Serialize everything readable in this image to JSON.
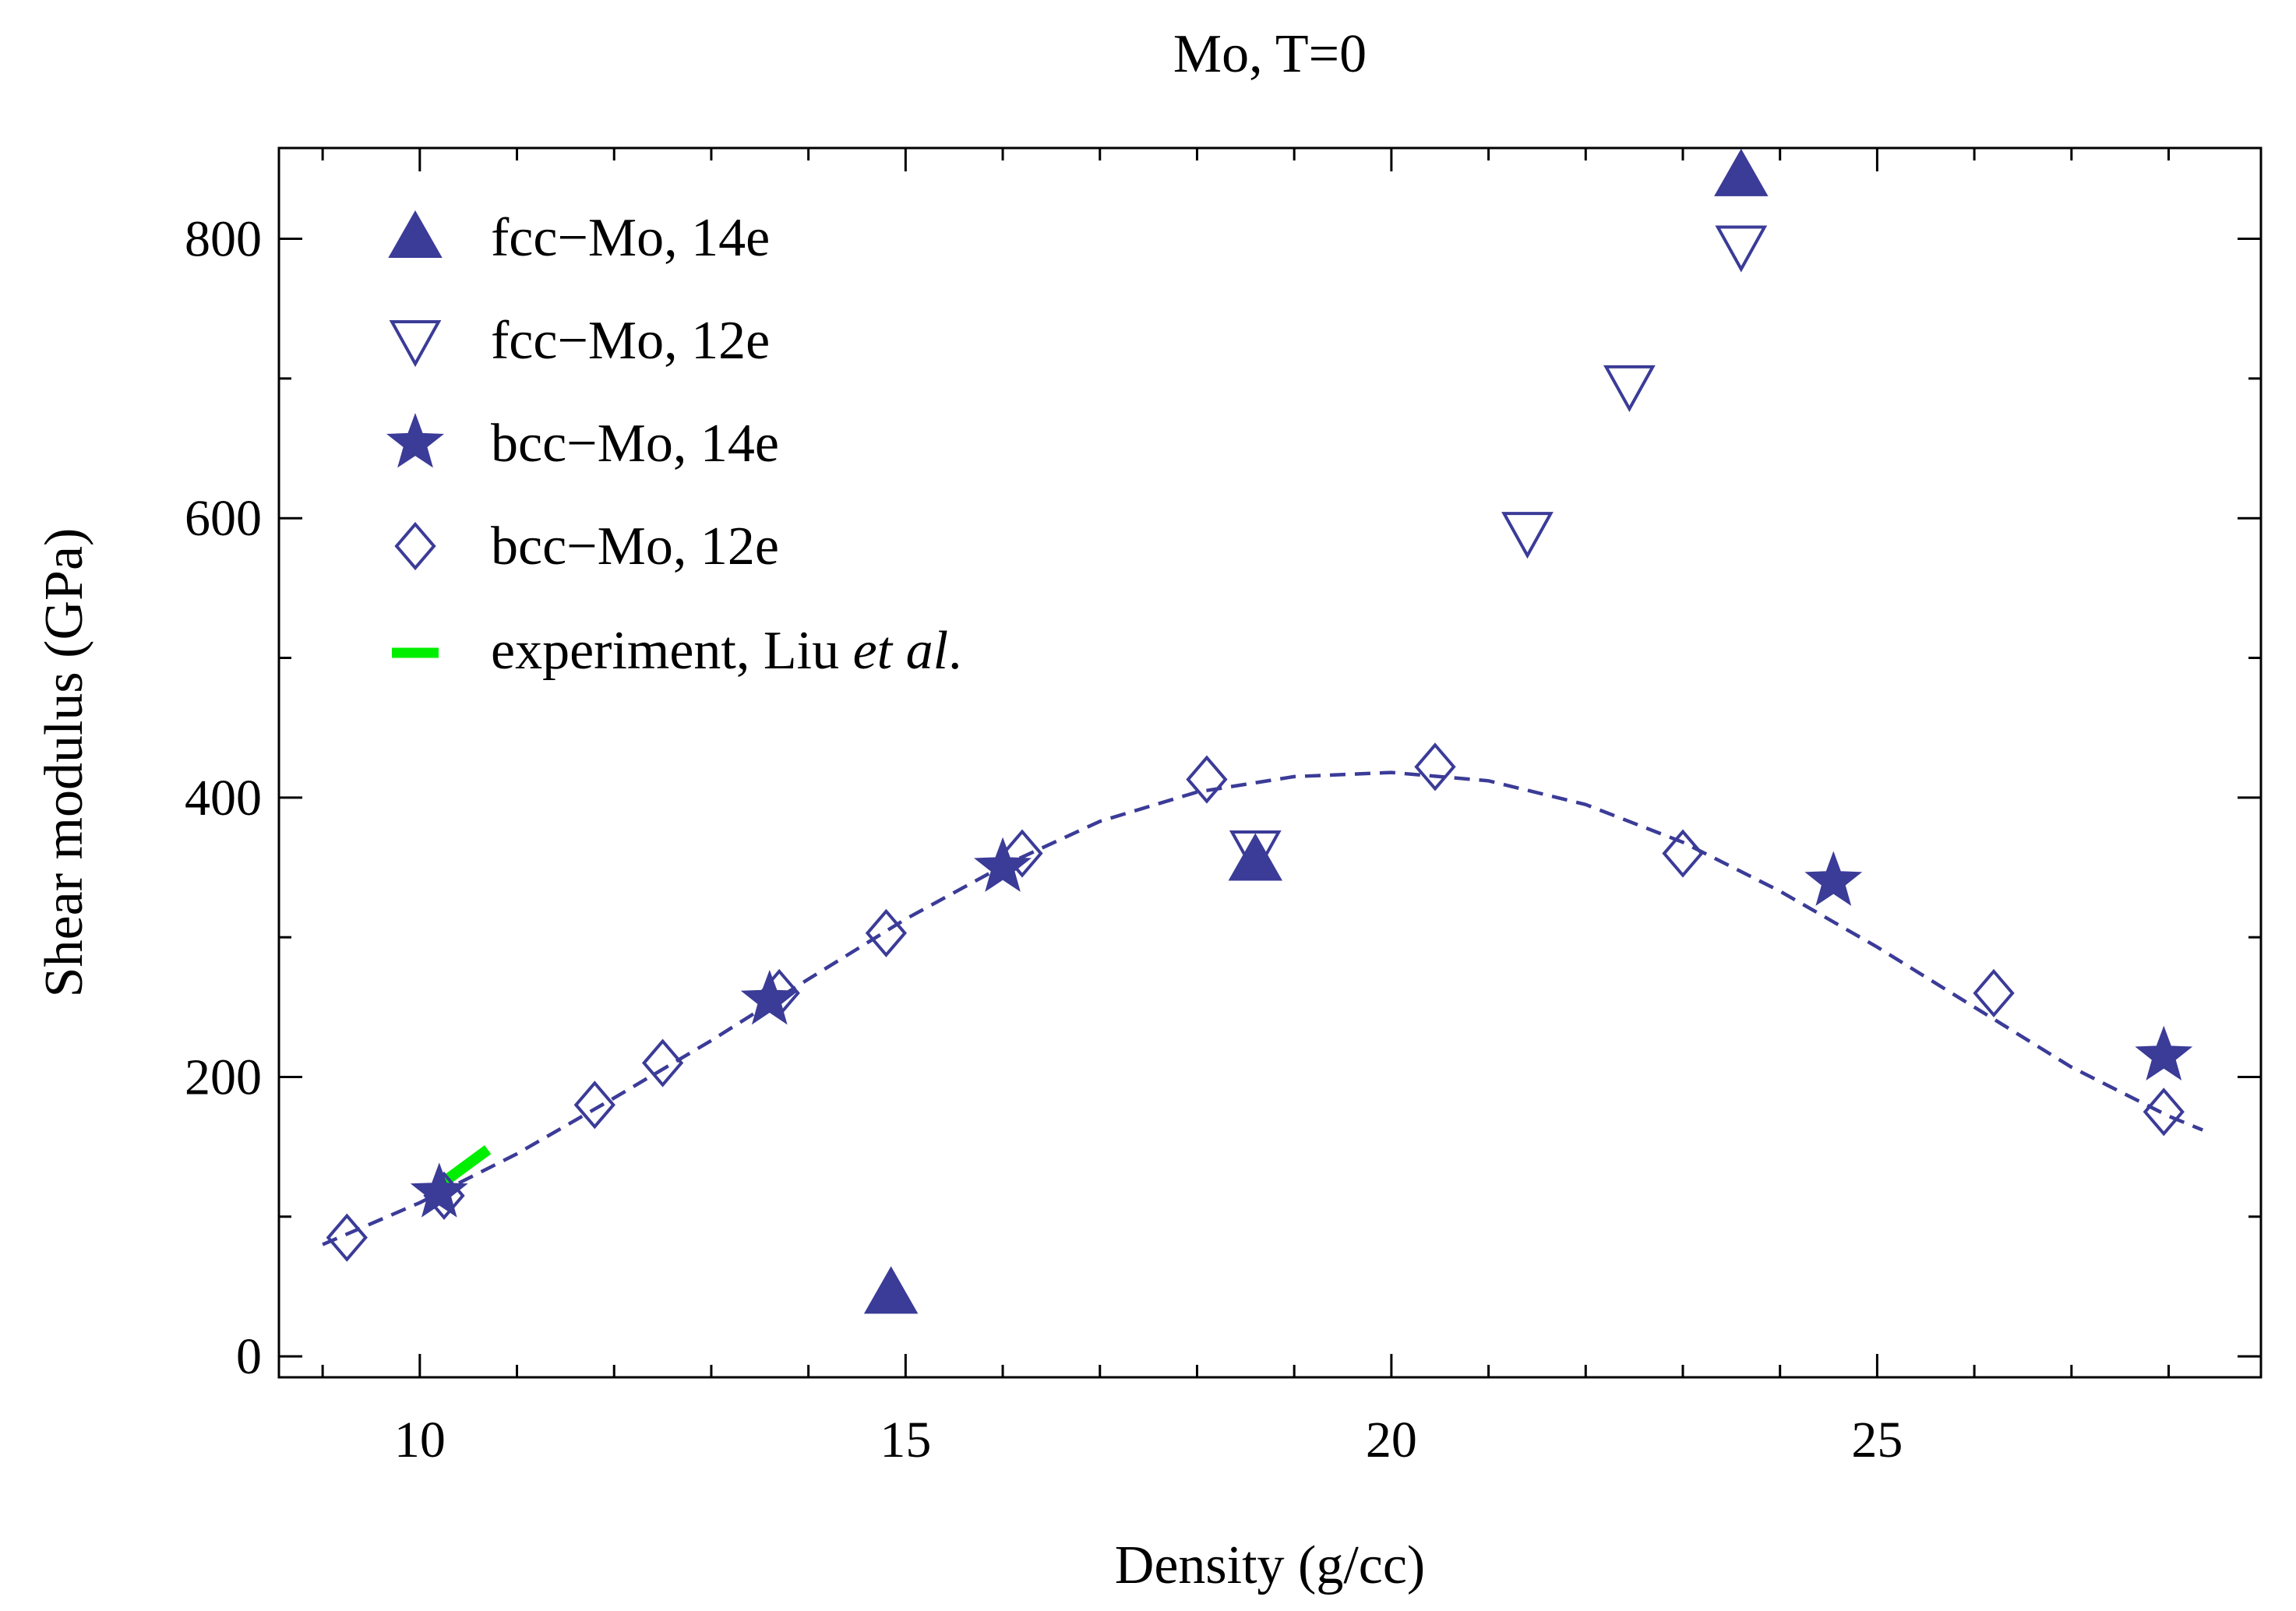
{
  "chart_data": {
    "type": "scatter",
    "title": "Mo, T=0",
    "xlabel": "Density (g/cc)",
    "ylabel": "Shear modulus (GPa)",
    "xlim": [
      8.55,
      28.95
    ],
    "ylim": [
      -15,
      865
    ],
    "x_ticks": [
      10,
      15,
      20,
      25
    ],
    "y_ticks": [
      0,
      200,
      400,
      600,
      800
    ],
    "legend_position": "top-left",
    "series": [
      {
        "name": "fcc−Mo, 14e",
        "marker": "triangle-up-filled",
        "color": "#3b3b98",
        "points": [
          [
            14.85,
            45
          ],
          [
            18.6,
            355
          ],
          [
            23.6,
            845
          ]
        ]
      },
      {
        "name": "fcc−Mo, 12e",
        "marker": "triangle-down-open",
        "color": "#3b3b98",
        "points": [
          [
            18.6,
            362
          ],
          [
            21.4,
            590
          ],
          [
            22.45,
            695
          ],
          [
            23.6,
            795
          ]
        ]
      },
      {
        "name": "bcc−Mo, 14e",
        "marker": "star-filled",
        "color": "#3b3b98",
        "points": [
          [
            10.2,
            117
          ],
          [
            13.6,
            255
          ],
          [
            16.0,
            350
          ],
          [
            24.55,
            340
          ],
          [
            27.95,
            215
          ]
        ]
      },
      {
        "name": "bcc−Mo, 12e",
        "marker": "diamond-open",
        "color": "#3b3b98",
        "points": [
          [
            9.25,
            85
          ],
          [
            10.25,
            115
          ],
          [
            11.8,
            180
          ],
          [
            12.5,
            210
          ],
          [
            13.7,
            260
          ],
          [
            14.8,
            303
          ],
          [
            16.2,
            360
          ],
          [
            18.1,
            413
          ],
          [
            20.45,
            422
          ],
          [
            23.0,
            360
          ],
          [
            26.2,
            260
          ],
          [
            27.95,
            175
          ]
        ]
      },
      {
        "name": "experiment, Liu et al.",
        "name_prefix": "experiment, Liu ",
        "name_italic": "et al",
        "name_suffix": ".",
        "marker": "line",
        "color": "#00ee00",
        "points": [
          [
            10.25,
            125
          ],
          [
            10.7,
            148
          ]
        ]
      }
    ],
    "fit_curve": {
      "style": "dashed",
      "color": "#3b3b98",
      "points": [
        [
          9.0,
          80
        ],
        [
          10.0,
          110
        ],
        [
          11.0,
          145
        ],
        [
          12.0,
          185
        ],
        [
          13.0,
          226
        ],
        [
          14.0,
          270
        ],
        [
          15.0,
          313
        ],
        [
          16.0,
          351
        ],
        [
          17.0,
          383
        ],
        [
          18.0,
          404
        ],
        [
          19.0,
          415
        ],
        [
          20.0,
          418
        ],
        [
          21.0,
          412
        ],
        [
          22.0,
          395
        ],
        [
          23.0,
          368
        ],
        [
          24.0,
          333
        ],
        [
          25.0,
          293
        ],
        [
          26.0,
          250
        ],
        [
          27.0,
          207
        ],
        [
          28.0,
          172
        ],
        [
          28.35,
          162
        ]
      ]
    }
  }
}
